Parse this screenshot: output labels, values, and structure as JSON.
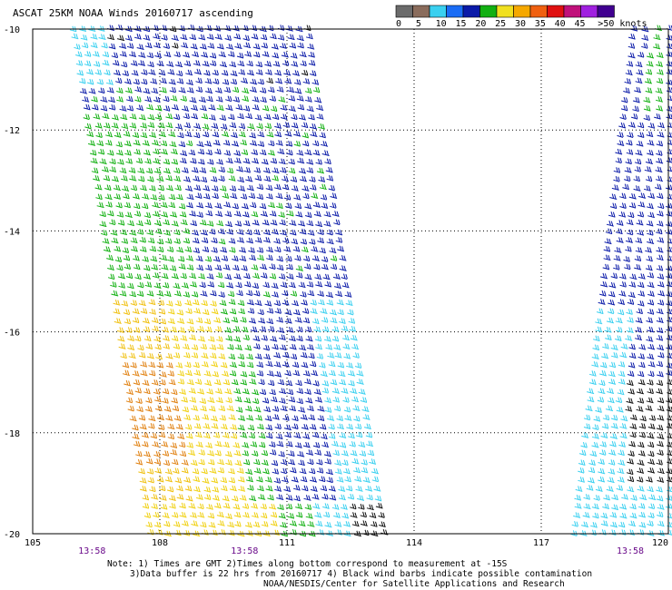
{
  "title": "ASCAT 25KM NOAA Winds 20160717 ascending",
  "legend": {
    "labels": [
      "0",
      "5",
      "10",
      "15",
      "20",
      "25",
      "30",
      "35",
      "40",
      "45",
      ">50 knots"
    ],
    "colors": [
      "#6b6b6b",
      "#8a6c5c",
      "#3ad0f0",
      "#1a6cf5",
      "#0a1aa8",
      "#12b012",
      "#f0e020",
      "#f5a800",
      "#f06010",
      "#e01010",
      "#c0107a",
      "#a020e0",
      "#400090"
    ]
  },
  "map": {
    "lon_min": 105,
    "lon_max": 120,
    "lat_min": -20,
    "lat_max": -10,
    "lon_ticks": [
      "105",
      "108",
      "111",
      "114",
      "117",
      "120"
    ],
    "lat_ticks": [
      "-10",
      "-12",
      "-14",
      "-16",
      "-18",
      "-20"
    ],
    "time_labels": [
      "13:58",
      "13:58",
      "13:58"
    ]
  },
  "swaths": [
    {
      "id": "west",
      "lon_nw": 105.9,
      "lon_ne": 111.4,
      "lon_sw": 107.7,
      "lon_se": 113.2
    },
    {
      "id": "east",
      "lon_nw": 119.1,
      "lon_ne": 120.0,
      "lon_sw": 117.7,
      "lon_se": 120.0
    }
  ],
  "notes": [
    "Note: 1) Times are GMT 2)Times along bottom correspond to measurement at -15S",
    "3)Data buffer is 22 hrs from 20160717 4) Black wind barbs indicate possible contamination",
    "NOAA/NESDIS/Center for Satellite Applications and Research"
  ]
}
